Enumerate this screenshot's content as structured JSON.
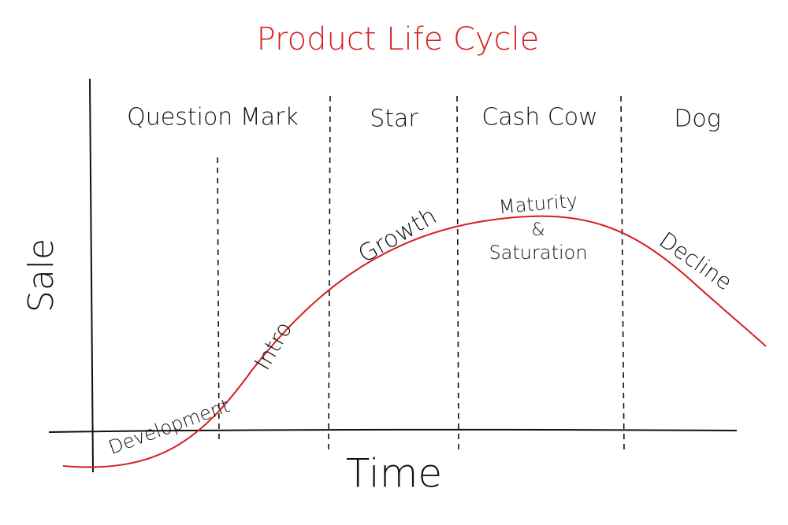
{
  "title": "Product Life Cycle",
  "axes": {
    "y": "Sale",
    "x": "Time"
  },
  "phases": [
    {
      "label": "Question Mark"
    },
    {
      "label": "Star"
    },
    {
      "label": "Cash Cow"
    },
    {
      "label": "Dog"
    }
  ],
  "stages": [
    {
      "label": "Development"
    },
    {
      "label": "Intro"
    },
    {
      "label": "Growth"
    },
    {
      "lines": [
        "Maturity",
        "&",
        "Saturation"
      ]
    },
    {
      "label": "Decline"
    }
  ]
}
